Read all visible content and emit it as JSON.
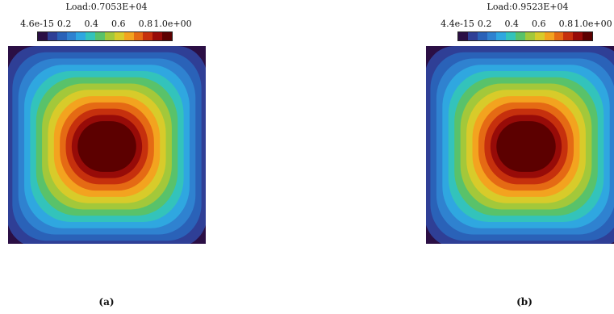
{
  "panels": [
    {
      "id": "a",
      "load_label": "Load:0.7053E+04",
      "colorbar": {
        "tick_labels": [
          "4.6e-15",
          "0.2",
          "0.4",
          "0.6",
          "0.8",
          "1.0e+00"
        ],
        "min": 4.6e-15,
        "max": 1.0
      },
      "caption": "(a)"
    },
    {
      "id": "b",
      "load_label": "Load:0.9523E+04",
      "colorbar": {
        "tick_labels": [
          "4.4e-15",
          "0.2",
          "0.4",
          "0.6",
          "0.8",
          "1.0e+00"
        ],
        "min": 4.4e-15,
        "max": 1.0
      },
      "caption": "(b)"
    }
  ],
  "colormap": [
    "#2b0f45",
    "#2f3f96",
    "#2a62b8",
    "#2f82d0",
    "#2fa7e0",
    "#33c3bb",
    "#59c26a",
    "#a3c83a",
    "#d8cb2a",
    "#f3a31f",
    "#e56a14",
    "#c6300d",
    "#970b08",
    "#5c0000"
  ]
}
